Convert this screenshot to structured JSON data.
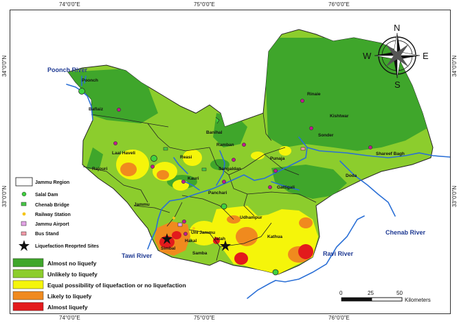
{
  "coordinates": {
    "top": [
      "74°0'0\"E",
      "75°0'0\"E",
      "76°0'0\"E"
    ],
    "bottom": [
      "74°0'0\"E",
      "75°0'0\"E",
      "76°0'0\"E"
    ],
    "left": [
      "34°0'0\"N",
      "33°0'0\"N"
    ],
    "right": [
      "34°0'0\"N",
      "33°0'0\"N"
    ]
  },
  "compass": {
    "n": "N",
    "s": "S",
    "e": "E",
    "w": "W"
  },
  "rivers": {
    "poonch": "Poonch River",
    "chenab": "Chenab River",
    "tawi": "Tawi River",
    "ravi": "Ravi River"
  },
  "places": {
    "poonch": "Poonch",
    "baflaiz": "Baflaiz",
    "rinaie": "Rinaie",
    "kishtwar": "Kishtwar",
    "sonder": "Sonder",
    "shareef_bagh": "Shareef Bagh",
    "banihal": "Banihal",
    "ramban": "Ramban",
    "laal_haveli": "Laal Haveli",
    "reasi": "Reasi",
    "rajouri": "Rajouri",
    "sangaldan": "Sangaldan",
    "punaja": "Punaja",
    "doda": "Doda",
    "kauri": "Kauri",
    "panchari": "Panchari",
    "gattigali": "Gattigali",
    "jammu": "Jammu",
    "udhampur": "Udhampur",
    "uni_jammu": "Uni Jammu",
    "hakal": "Hakal",
    "jatah": "Jatah",
    "simbal": "Simbal",
    "samba": "Samba",
    "kathua": "Kathua"
  },
  "legend": {
    "jammu_region": "Jammu Region",
    "salal_dam": "Salal Dam",
    "chenab_bridge": "Chenab Bridge",
    "railway_station": "Railway Station",
    "jammu_airport": "Jammu Airport",
    "bus_stand": "Bus Stand",
    "liquefaction_sites": "Liquefaction Reoprted Sites"
  },
  "classes": [
    {
      "label": "Almost no liquefy",
      "color": "#3fa62b"
    },
    {
      "label": "Unlikely to liquefy",
      "color": "#8ccd2d"
    },
    {
      "label": "Equal possibility of liquefaction or no liquefaction",
      "color": "#f5f50a"
    },
    {
      "label": "Likely to liquefy",
      "color": "#f08a1e"
    },
    {
      "label": "Almost liquefy",
      "color": "#e31a1c"
    }
  ],
  "scale": {
    "ticks": [
      "0",
      "25",
      "50"
    ],
    "unit": "Kilometers"
  },
  "colors": {
    "river": "#2a6fd6",
    "boundary": "#222222",
    "place": "#c2188f"
  }
}
